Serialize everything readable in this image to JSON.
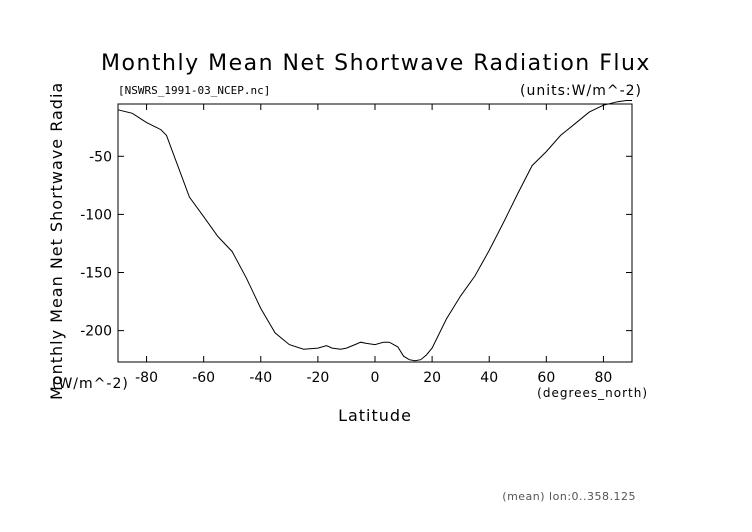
{
  "chart_data": {
    "type": "line",
    "title": "Monthly Mean Net Shortwave Radiation Flux",
    "subtitle_left": "[NSWRS_1991-03_NCEP.nc]",
    "subtitle_right": "(units:W/m^-2)",
    "xlabel": "Latitude",
    "xunits": "(degrees_north)",
    "ylabel": "Monthly Mean Net Shortwave Radia",
    "yunits": "(W/m^-2)",
    "footnote": "(mean) lon:0..358.125",
    "xlim": [
      -90,
      90
    ],
    "ylim": [
      -227,
      -5
    ],
    "xticks": [
      -80,
      -60,
      -40,
      -20,
      0,
      20,
      40,
      60,
      80
    ],
    "yticks": [
      -50,
      -100,
      -150,
      -200
    ],
    "grid": false,
    "series": [
      {
        "x": [
          -90,
          -85,
          -80,
          -75,
          -73,
          -70,
          -65,
          -60,
          -55,
          -50,
          -45,
          -40,
          -35,
          -30,
          -25,
          -20,
          -17,
          -15,
          -12,
          -10,
          -7,
          -5,
          -3,
          0,
          3,
          5,
          8,
          10,
          12,
          14,
          16,
          18,
          20,
          25,
          30,
          35,
          40,
          45,
          50,
          55,
          60,
          65,
          70,
          75,
          80,
          85,
          88,
          90
        ],
        "y": [
          -10,
          -13,
          -21,
          -27,
          -32,
          -52,
          -85,
          -102,
          -119,
          -132,
          -155,
          -181,
          -202,
          -212,
          -216,
          -215,
          -213,
          -215,
          -216,
          -215,
          -212,
          -210,
          -211,
          -212,
          -210,
          -210,
          -214,
          -222,
          -225,
          -226,
          -225,
          -221,
          -215,
          -190,
          -170,
          -153,
          -131,
          -107,
          -82,
          -58,
          -46,
          -32,
          -22,
          -12,
          -6,
          -3,
          -2,
          -2
        ]
      }
    ]
  }
}
